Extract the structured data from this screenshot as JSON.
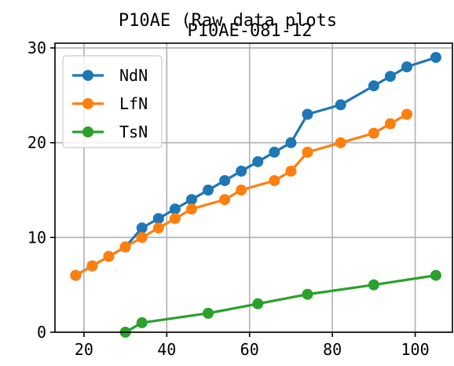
{
  "chart_data": {
    "type": "line",
    "suptitle": "P10AE (Raw data plots",
    "title": "P10AE-081-12",
    "xlabel": "",
    "ylabel": "",
    "xlim": [
      13,
      109
    ],
    "ylim": [
      0,
      30.5
    ],
    "xticks": [
      20,
      40,
      60,
      80,
      100
    ],
    "yticks": [
      0,
      10,
      20,
      30
    ],
    "grid": true,
    "legend_position": "top-left",
    "series": [
      {
        "name": "NdN",
        "color": "#1f77b4",
        "x": [
          18,
          22,
          26,
          30,
          34,
          38,
          42,
          46,
          50,
          54,
          58,
          62,
          66,
          70,
          74,
          82,
          90,
          94,
          98,
          105
        ],
        "y": [
          6,
          7,
          8,
          9,
          11,
          12,
          13,
          14,
          15,
          16,
          17,
          18,
          19,
          20,
          23,
          24,
          26,
          27,
          28,
          29
        ]
      },
      {
        "name": "LfN",
        "color": "#ff7f0e",
        "x": [
          18,
          22,
          26,
          30,
          34,
          38,
          42,
          46,
          54,
          58,
          66,
          70,
          74,
          82,
          90,
          94,
          98
        ],
        "y": [
          6,
          7,
          8,
          9,
          10,
          11,
          12,
          13,
          14,
          15,
          16,
          17,
          19,
          20,
          21,
          22,
          23
        ]
      },
      {
        "name": "TsN",
        "color": "#2ca02c",
        "x": [
          30,
          34,
          50,
          62,
          74,
          90,
          105
        ],
        "y": [
          0,
          1,
          2,
          3,
          4,
          5,
          6
        ]
      }
    ]
  }
}
